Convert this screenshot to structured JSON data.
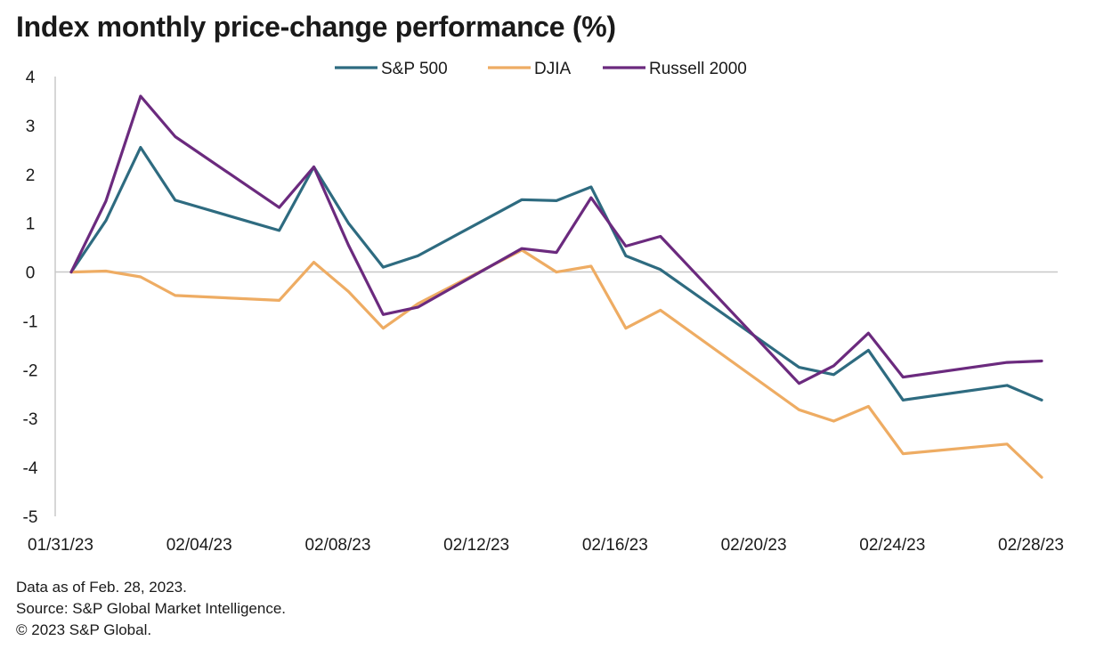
{
  "colors": {
    "sp500": "#2e6b80",
    "djia": "#eeac63",
    "russell": "#6b2a7e",
    "axis": "#c8c8c8"
  },
  "chart_data": {
    "type": "line",
    "title": "Index monthly price-change performance (%)",
    "xlabel": "",
    "ylabel": "",
    "ylim": [
      -5,
      4
    ],
    "yticks": [
      4,
      3,
      2,
      1,
      0,
      -1,
      -2,
      -3,
      -4,
      -5
    ],
    "legend_position": "top",
    "x": [
      "01/31/23",
      "02/01/23",
      "02/02/23",
      "02/03/23",
      "02/06/23",
      "02/07/23",
      "02/08/23",
      "02/09/23",
      "02/10/23",
      "02/13/23",
      "02/14/23",
      "02/15/23",
      "02/16/23",
      "02/17/23",
      "02/21/23",
      "02/22/23",
      "02/23/23",
      "02/24/23",
      "02/27/23",
      "02/28/23"
    ],
    "x_positions": [
      0,
      1,
      2,
      3,
      6,
      7,
      8,
      9,
      10,
      13,
      14,
      15,
      16,
      17,
      21,
      22,
      23,
      24,
      27,
      28
    ],
    "xtick_labels": [
      "01/31/23",
      "02/04/23",
      "02/08/23",
      "02/12/23",
      "02/16/23",
      "02/20/23",
      "02/24/23",
      "02/28/23"
    ],
    "xtick_positions": [
      0,
      4,
      8,
      12,
      16,
      20,
      24,
      28
    ],
    "series": [
      {
        "name": "S&P 500",
        "key": "sp500",
        "values": [
          0,
          1.05,
          2.55,
          1.47,
          0.85,
          2.15,
          1.0,
          0.1,
          0.33,
          1.48,
          1.46,
          1.74,
          0.33,
          0.05,
          -1.95,
          -2.1,
          -1.6,
          -2.62,
          -2.32,
          -2.62
        ]
      },
      {
        "name": "DJIA",
        "key": "djia",
        "values": [
          0,
          0.02,
          -0.1,
          -0.48,
          -0.58,
          0.2,
          -0.4,
          -1.15,
          -0.65,
          0.45,
          0.0,
          0.12,
          -1.15,
          -0.78,
          -2.82,
          -3.05,
          -2.75,
          -3.72,
          -3.52,
          -4.2
        ]
      },
      {
        "name": "Russell 2000",
        "key": "russell",
        "values": [
          0,
          1.45,
          3.6,
          2.77,
          1.32,
          2.15,
          0.55,
          -0.87,
          -0.72,
          0.48,
          0.4,
          1.52,
          0.53,
          0.73,
          -2.28,
          -1.92,
          -1.25,
          -2.15,
          -1.85,
          -1.82
        ]
      }
    ]
  },
  "notes": {
    "line1": "Data as of Feb. 28, 2023.",
    "line2": "Source: S&P Global Market Intelligence.",
    "line3": "© 2023 S&P Global."
  }
}
